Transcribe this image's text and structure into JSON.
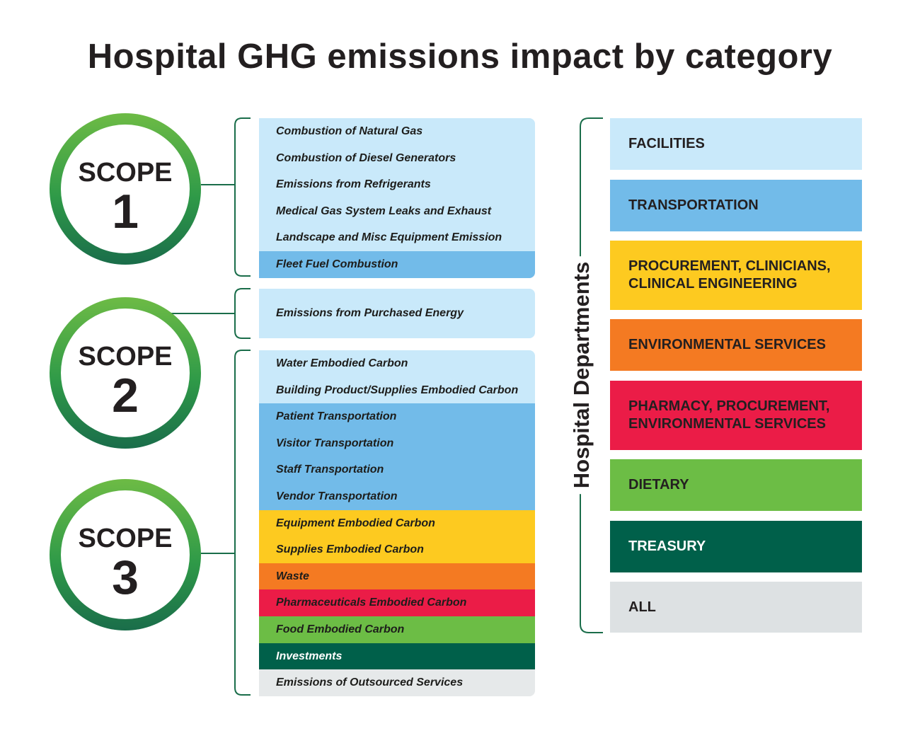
{
  "title": "Hospital GHG emissions impact by category",
  "scopes": [
    {
      "word": "SCOPE",
      "number": "1"
    },
    {
      "word": "SCOPE",
      "number": "2"
    },
    {
      "word": "SCOPE",
      "number": "3"
    }
  ],
  "scope1_categories": [
    {
      "label": "Combustion of Natural Gas",
      "color": "#c9e9fa"
    },
    {
      "label": "Combustion of Diesel Generators",
      "color": "#c9e9fa"
    },
    {
      "label": "Emissions from Refrigerants",
      "color": "#c9e9fa"
    },
    {
      "label": "Medical Gas System Leaks and Exhaust",
      "color": "#c9e9fa"
    },
    {
      "label": "Landscape and Misc Equipment Emission",
      "color": "#c9e9fa"
    },
    {
      "label": "Fleet Fuel Combustion",
      "color": "#72bbe9"
    }
  ],
  "scope2_categories": [
    {
      "label": "Emissions from Purchased Energy",
      "color": "#c9e9fa"
    }
  ],
  "scope3_categories": [
    {
      "label": "Water Embodied Carbon",
      "color": "#c9e9fa"
    },
    {
      "label": "Building Product/Supplies Embodied Carbon",
      "color": "#c9e9fa"
    },
    {
      "label": "Patient Transportation",
      "color": "#72bbe9"
    },
    {
      "label": "Visitor Transportation",
      "color": "#72bbe9"
    },
    {
      "label": "Staff Transportation",
      "color": "#72bbe9"
    },
    {
      "label": "Vendor Transportation",
      "color": "#72bbe9"
    },
    {
      "label": "Equipment Embodied Carbon",
      "color": "#fdca20"
    },
    {
      "label": "Supplies Embodied Carbon",
      "color": "#fdca20"
    },
    {
      "label": "Waste",
      "color": "#f47a22"
    },
    {
      "label": "Pharmaceuticals Embodied Carbon",
      "color": "#eb1c47"
    },
    {
      "label": "Food Embodied Carbon",
      "color": "#6cbd45"
    },
    {
      "label": "Investments",
      "color": "#00604a"
    },
    {
      "label": "Emissions of Outsourced Services",
      "color": "#e6e9ea"
    }
  ],
  "departments_heading": "Hospital Departments",
  "departments": [
    {
      "label": "FACILITIES",
      "color": "#c9e9fa"
    },
    {
      "label": "TRANSPORTATION",
      "color": "#72bbe9"
    },
    {
      "label": "PROCUREMENT, CLINICIANS,\nCLINICAL ENGINEERING",
      "color": "#fdca20"
    },
    {
      "label": "ENVIRONMENTAL SERVICES",
      "color": "#f47a22"
    },
    {
      "label": "PHARMACY, PROCUREMENT,\nENVIRONMENTAL SERVICES",
      "color": "#eb1c47"
    },
    {
      "label": "DIETARY",
      "color": "#6cbd45"
    },
    {
      "label": "TREASURY",
      "color": "#00604a"
    },
    {
      "label": "ALL",
      "color": "#dde1e3"
    }
  ],
  "connector_color": "#1a6d4a"
}
